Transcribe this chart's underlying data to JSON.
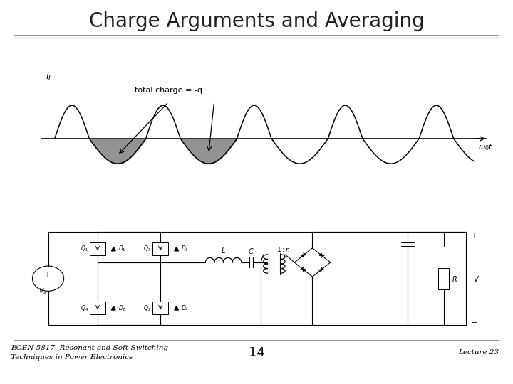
{
  "title": "Charge Arguments and Averaging",
  "footer_left": "ECEN 5817  Resonant and Soft-Switching\nTechniques in Power Electronics",
  "footer_center": "14",
  "footer_right": "Lecture 23",
  "bg_color": "#ffffff",
  "title_color": "#222222",
  "footer_color": "#000000",
  "separator_color": "#999999",
  "title_fontsize": 20,
  "footer_fontsize": 7.5,
  "page_number_fontsize": 13
}
